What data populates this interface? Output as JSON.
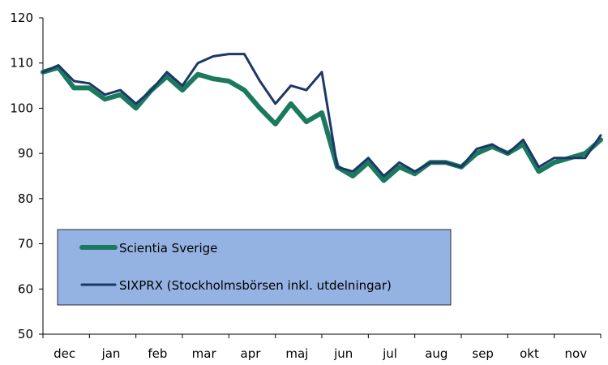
{
  "chart_data": {
    "type": "line",
    "title": "",
    "xlabel": "",
    "ylabel": "",
    "ylim": [
      50,
      120
    ],
    "yticks": [
      50,
      60,
      70,
      80,
      90,
      100,
      110,
      120
    ],
    "month_labels": [
      "dec",
      "jan",
      "feb",
      "mar",
      "apr",
      "maj",
      "jun",
      "jul",
      "aug",
      "sep",
      "okt",
      "nov"
    ],
    "grid": false,
    "legend": {
      "placement": "lower-left",
      "background": "#95b3e2"
    },
    "x_week_points": [
      0,
      0.5,
      1,
      1.5,
      2,
      2.5,
      3,
      3.5,
      4,
      4.5,
      5,
      5.5,
      6,
      6.5,
      7,
      7.5,
      8,
      8.5,
      9,
      9.5,
      10,
      10.5,
      11,
      11.5,
      12
    ],
    "series": [
      {
        "name": "Scientia Sverige",
        "color": "#1b7a5e",
        "values": [
          108,
          109,
          104.5,
          104.5,
          102,
          103,
          100,
          104,
          107,
          104,
          107.5,
          106.5,
          106,
          104,
          100,
          96.5,
          101,
          97,
          99,
          87,
          85,
          88,
          84,
          87,
          85.5,
          88,
          88,
          87,
          90,
          91.5,
          90,
          92,
          86,
          88,
          89,
          90,
          93
        ]
      },
      {
        "name": "SIXPRX (Stockholmsbörsen inkl. utdelningar)",
        "color": "#1c3768",
        "values": [
          108,
          109.5,
          106,
          105.5,
          103,
          104,
          101,
          104,
          108,
          105,
          110,
          111.5,
          112,
          112,
          106,
          101,
          105,
          104,
          108,
          87,
          86,
          89,
          85,
          88,
          86,
          88,
          88,
          87,
          91,
          92,
          90,
          93,
          87,
          89,
          89,
          89,
          94
        ]
      }
    ]
  }
}
